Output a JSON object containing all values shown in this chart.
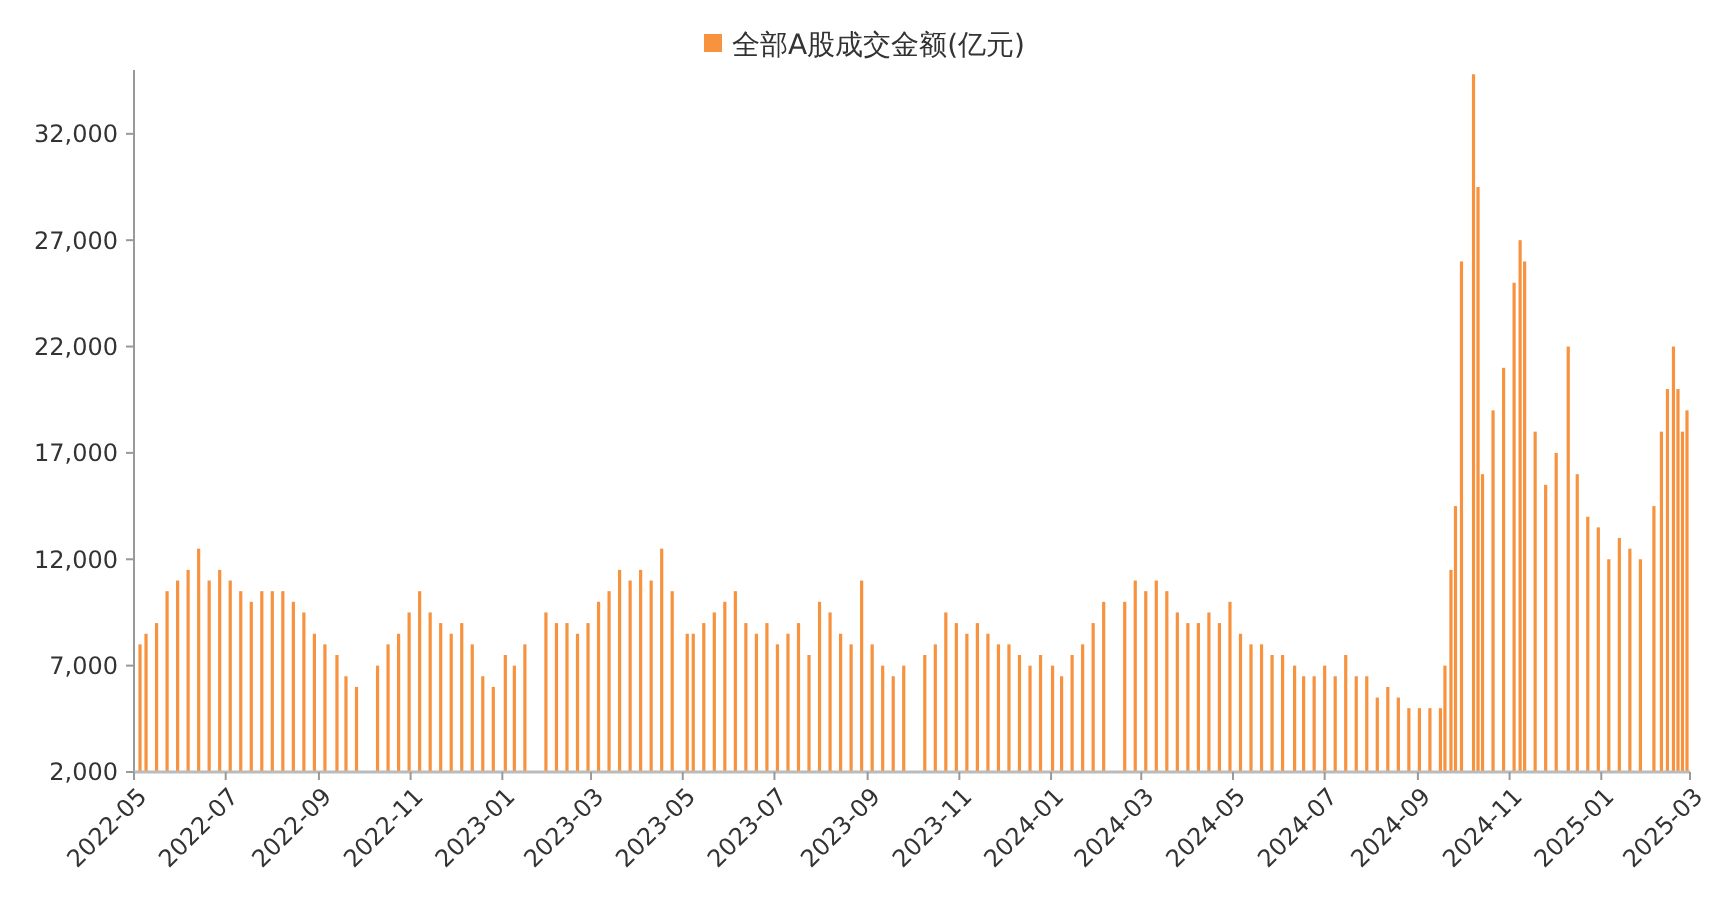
{
  "chart_data": {
    "type": "bar",
    "x": [
      "2022-05-05",
      "2022-05-09",
      "2022-05-16",
      "2022-05-23",
      "2022-05-30",
      "2022-06-06",
      "2022-06-13",
      "2022-06-20",
      "2022-06-27",
      "2022-07-04",
      "2022-07-11",
      "2022-07-18",
      "2022-07-25",
      "2022-08-01",
      "2022-08-08",
      "2022-08-15",
      "2022-08-22",
      "2022-08-29",
      "2022-09-05",
      "2022-09-13",
      "2022-09-19",
      "2022-09-26",
      "2022-10-10",
      "2022-10-17",
      "2022-10-24",
      "2022-10-31",
      "2022-11-07",
      "2022-11-14",
      "2022-11-21",
      "2022-11-28",
      "2022-12-05",
      "2022-12-12",
      "2022-12-19",
      "2022-12-26",
      "2023-01-03",
      "2023-01-09",
      "2023-01-16",
      "2023-01-30",
      "2023-02-06",
      "2023-02-13",
      "2023-02-20",
      "2023-02-27",
      "2023-03-06",
      "2023-03-13",
      "2023-03-20",
      "2023-03-27",
      "2023-04-03",
      "2023-04-10",
      "2023-04-17",
      "2023-04-24",
      "2023-05-04",
      "2023-05-08",
      "2023-05-15",
      "2023-05-22",
      "2023-05-29",
      "2023-06-05",
      "2023-06-12",
      "2023-06-19",
      "2023-06-26",
      "2023-07-03",
      "2023-07-10",
      "2023-07-17",
      "2023-07-24",
      "2023-07-31",
      "2023-08-07",
      "2023-08-14",
      "2023-08-21",
      "2023-08-28",
      "2023-09-04",
      "2023-09-11",
      "2023-09-18",
      "2023-09-25",
      "2023-10-09",
      "2023-10-16",
      "2023-10-23",
      "2023-10-30",
      "2023-11-06",
      "2023-11-13",
      "2023-11-20",
      "2023-11-27",
      "2023-12-04",
      "2023-12-11",
      "2023-12-18",
      "2023-12-25",
      "2024-01-02",
      "2024-01-08",
      "2024-01-15",
      "2024-01-22",
      "2024-01-29",
      "2024-02-05",
      "2024-02-19",
      "2024-02-26",
      "2024-03-04",
      "2024-03-11",
      "2024-03-18",
      "2024-03-25",
      "2024-04-01",
      "2024-04-08",
      "2024-04-15",
      "2024-04-22",
      "2024-04-29",
      "2024-05-06",
      "2024-05-13",
      "2024-05-20",
      "2024-05-27",
      "2024-06-03",
      "2024-06-11",
      "2024-06-17",
      "2024-06-24",
      "2024-07-01",
      "2024-07-08",
      "2024-07-15",
      "2024-07-22",
      "2024-07-29",
      "2024-08-05",
      "2024-08-12",
      "2024-08-19",
      "2024-08-26",
      "2024-09-02",
      "2024-09-09",
      "2024-09-16",
      "2024-09-19",
      "2024-09-23",
      "2024-09-26",
      "2024-09-30",
      "2024-10-08",
      "2024-10-11",
      "2024-10-14",
      "2024-10-21",
      "2024-10-28",
      "2024-11-04",
      "2024-11-08",
      "2024-11-11",
      "2024-11-18",
      "2024-11-25",
      "2024-12-02",
      "2024-12-10",
      "2024-12-16",
      "2024-12-23",
      "2024-12-30",
      "2025-01-06",
      "2025-01-13",
      "2025-01-20",
      "2025-01-27",
      "2025-02-05",
      "2025-02-10",
      "2025-02-14",
      "2025-02-18",
      "2025-02-21",
      "2025-02-24",
      "2025-02-27"
    ],
    "series": [
      {
        "name": "全部A股成交金额(亿元)",
        "color": "#f7923f",
        "values": [
          8000,
          8500,
          9000,
          10500,
          11000,
          11500,
          12500,
          11000,
          11500,
          11000,
          10500,
          10000,
          10500,
          10500,
          10500,
          10000,
          9500,
          8500,
          8000,
          7500,
          6500,
          6000,
          7000,
          8000,
          8500,
          9500,
          10500,
          9500,
          9000,
          8500,
          9000,
          8000,
          6500,
          6000,
          7500,
          7000,
          8000,
          9500,
          9000,
          9000,
          8500,
          9000,
          10000,
          10500,
          11500,
          11000,
          11500,
          11000,
          12500,
          10500,
          8500,
          8500,
          9000,
          9500,
          10000,
          10500,
          9000,
          8500,
          9000,
          8000,
          8500,
          9000,
          7500,
          10000,
          9500,
          8500,
          8000,
          11000,
          8000,
          7000,
          6500,
          7000,
          7500,
          8000,
          9500,
          9000,
          8500,
          9000,
          8500,
          8000,
          8000,
          7500,
          7000,
          7500,
          7000,
          6500,
          7500,
          8000,
          9000,
          10000,
          10000,
          11000,
          10500,
          11000,
          10500,
          9500,
          9000,
          9000,
          9500,
          9000,
          10000,
          8500,
          8000,
          8000,
          7500,
          7500,
          7000,
          6500,
          6500,
          7000,
          6500,
          7500,
          6500,
          6500,
          5500,
          6000,
          5500,
          5000,
          5000,
          5000,
          5000,
          7000,
          11500,
          14500,
          26000,
          34800,
          29500,
          16000,
          19000,
          21000,
          25000,
          27000,
          26000,
          18000,
          15500,
          17000,
          22000,
          16000,
          14000,
          13500,
          12000,
          13000,
          12500,
          12000,
          14500,
          18000,
          20000,
          22000,
          20000,
          18000,
          19000
        ]
      }
    ],
    "xlim": [
      "2022-05",
      "2025-03"
    ],
    "xticks": [
      "2022-05",
      "2022-07",
      "2022-09",
      "2022-11",
      "2023-01",
      "2023-03",
      "2023-05",
      "2023-07",
      "2023-09",
      "2023-11",
      "2024-01",
      "2024-03",
      "2024-05",
      "2024-07",
      "2024-09",
      "2024-11",
      "2025-01",
      "2025-03"
    ],
    "ylim": [
      2000,
      35000
    ],
    "yticks": [
      {
        "value": 2000,
        "label": "2,000"
      },
      {
        "value": 7000,
        "label": "7,000"
      },
      {
        "value": 12000,
        "label": "12,000"
      },
      {
        "value": 17000,
        "label": "17,000"
      },
      {
        "value": 22000,
        "label": "22,000"
      },
      {
        "value": 27000,
        "label": "27,000"
      },
      {
        "value": 32000,
        "label": "32,000"
      }
    ],
    "grid": false,
    "legend": "top"
  }
}
